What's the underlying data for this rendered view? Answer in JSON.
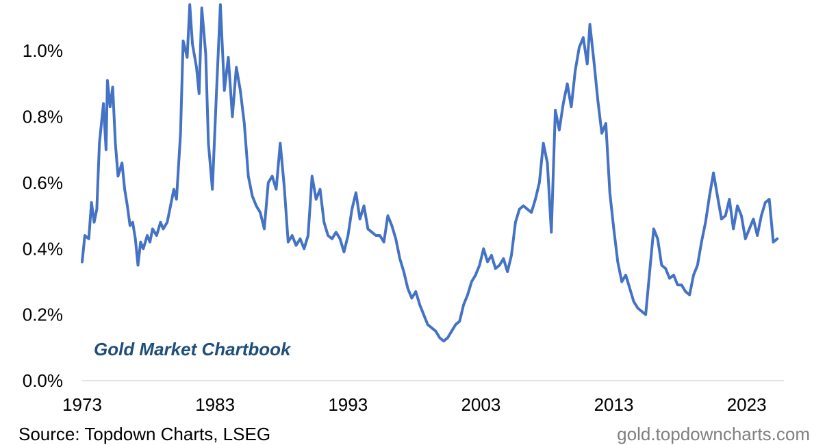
{
  "chart_data": {
    "type": "line",
    "title": "",
    "xlabel": "",
    "ylabel": "",
    "y_format": "percent_1dp",
    "ylim": [
      0.0,
      1.1
    ],
    "y_ticks": [
      0.0,
      0.2,
      0.4,
      0.6,
      0.8,
      1.0
    ],
    "y_tick_labels": [
      "0.0%",
      "0.2%",
      "0.4%",
      "0.6%",
      "0.8%",
      "1.0%"
    ],
    "xlim": [
      1973.0,
      2025.8
    ],
    "x_ticks": [
      1973,
      1983,
      1993,
      2003,
      2013,
      2023
    ],
    "x_tick_labels": [
      "1973",
      "1983",
      "1993",
      "2003",
      "2013",
      "2023"
    ],
    "grid": false,
    "legend": "none",
    "line_color": "#4472c4",
    "axis_color": "#d9d9d9",
    "series": [
      {
        "x": [
          1973.0,
          1973.2,
          1973.5,
          1973.7,
          1973.9,
          1974.1,
          1974.3,
          1974.6,
          1974.8,
          1974.9,
          1975.1,
          1975.3,
          1975.5,
          1975.7,
          1976.0,
          1976.2,
          1976.4,
          1976.6,
          1976.8,
          1977.0,
          1977.2,
          1977.4,
          1977.6,
          1977.9,
          1978.1,
          1978.3,
          1978.6,
          1978.9,
          1979.1,
          1979.4,
          1979.6,
          1979.9,
          1980.1,
          1980.4,
          1980.6,
          1980.9,
          1981.1,
          1981.3,
          1981.6,
          1981.8,
          1982.0,
          1982.3,
          1982.5,
          1982.8,
          1983.1,
          1983.4,
          1983.7,
          1984.0,
          1984.3,
          1984.6,
          1984.9,
          1985.2,
          1985.5,
          1985.8,
          1986.1,
          1986.4,
          1986.7,
          1987.0,
          1987.3,
          1987.6,
          1987.9,
          1988.2,
          1988.5,
          1988.8,
          1989.1,
          1989.4,
          1989.7,
          1990.0,
          1990.3,
          1990.6,
          1990.9,
          1991.2,
          1991.5,
          1991.8,
          1992.1,
          1992.4,
          1992.7,
          1993.0,
          1993.3,
          1993.6,
          1993.9,
          1994.2,
          1994.5,
          1994.8,
          1995.1,
          1995.4,
          1995.7,
          1996.0,
          1996.3,
          1996.6,
          1996.9,
          1997.2,
          1997.5,
          1997.8,
          1998.1,
          1998.4,
          1998.7,
          1999.0,
          1999.3,
          1999.6,
          1999.9,
          2000.2,
          2000.5,
          2000.8,
          2001.1,
          2001.4,
          2001.7,
          2002.0,
          2002.3,
          2002.6,
          2002.9,
          2003.2,
          2003.5,
          2003.8,
          2004.1,
          2004.4,
          2004.7,
          2005.0,
          2005.3,
          2005.6,
          2005.9,
          2006.2,
          2006.5,
          2006.8,
          2007.1,
          2007.4,
          2007.7,
          2008.0,
          2008.3,
          2008.6,
          2008.9,
          2009.2,
          2009.5,
          2009.8,
          2010.1,
          2010.4,
          2010.7,
          2011.0,
          2011.2,
          2011.5,
          2011.8,
          2012.1,
          2012.4,
          2012.7,
          2013.0,
          2013.3,
          2013.6,
          2013.9,
          2014.2,
          2014.5,
          2014.8,
          2015.1,
          2015.4,
          2015.7,
          2016.0,
          2016.3,
          2016.6,
          2016.9,
          2017.2,
          2017.5,
          2017.8,
          2018.1,
          2018.4,
          2018.7,
          2019.0,
          2019.3,
          2019.6,
          2019.9,
          2020.2,
          2020.5,
          2020.8,
          2021.1,
          2021.4,
          2021.7,
          2022.0,
          2022.3,
          2022.6,
          2022.9,
          2023.2,
          2023.5,
          2023.8,
          2024.1,
          2024.4,
          2024.7,
          2025.0,
          2025.3
        ],
        "values": [
          0.36,
          0.44,
          0.43,
          0.54,
          0.48,
          0.52,
          0.72,
          0.84,
          0.7,
          0.91,
          0.83,
          0.89,
          0.72,
          0.62,
          0.66,
          0.58,
          0.53,
          0.47,
          0.48,
          0.43,
          0.35,
          0.42,
          0.4,
          0.44,
          0.42,
          0.46,
          0.44,
          0.48,
          0.46,
          0.48,
          0.52,
          0.58,
          0.55,
          0.75,
          1.03,
          0.98,
          1.14,
          1.02,
          0.95,
          0.87,
          1.13,
          0.99,
          0.72,
          0.58,
          0.87,
          1.14,
          0.88,
          0.98,
          0.8,
          0.95,
          0.88,
          0.78,
          0.62,
          0.56,
          0.53,
          0.51,
          0.46,
          0.6,
          0.62,
          0.58,
          0.72,
          0.59,
          0.42,
          0.44,
          0.41,
          0.43,
          0.4,
          0.44,
          0.62,
          0.55,
          0.58,
          0.48,
          0.44,
          0.43,
          0.45,
          0.43,
          0.39,
          0.44,
          0.52,
          0.57,
          0.49,
          0.53,
          0.46,
          0.45,
          0.44,
          0.44,
          0.42,
          0.5,
          0.47,
          0.43,
          0.37,
          0.33,
          0.28,
          0.25,
          0.27,
          0.23,
          0.2,
          0.17,
          0.16,
          0.15,
          0.13,
          0.12,
          0.13,
          0.15,
          0.17,
          0.18,
          0.23,
          0.26,
          0.3,
          0.32,
          0.35,
          0.4,
          0.36,
          0.38,
          0.34,
          0.35,
          0.37,
          0.33,
          0.38,
          0.48,
          0.52,
          0.53,
          0.52,
          0.51,
          0.55,
          0.6,
          0.72,
          0.66,
          0.45,
          0.82,
          0.76,
          0.84,
          0.9,
          0.83,
          0.94,
          1.01,
          1.04,
          0.96,
          1.08,
          0.97,
          0.85,
          0.75,
          0.78,
          0.57,
          0.46,
          0.36,
          0.3,
          0.32,
          0.28,
          0.24,
          0.22,
          0.21,
          0.2,
          0.33,
          0.46,
          0.43,
          0.35,
          0.34,
          0.31,
          0.32,
          0.29,
          0.29,
          0.27,
          0.26,
          0.32,
          0.35,
          0.42,
          0.48,
          0.56,
          0.63,
          0.56,
          0.49,
          0.5,
          0.55,
          0.46,
          0.53,
          0.5,
          0.43,
          0.46,
          0.49,
          0.44,
          0.5,
          0.54,
          0.55,
          0.42,
          0.43
        ]
      }
    ]
  },
  "annotations": {
    "watermark_title": "Gold Market Chartbook",
    "source": "Source: Topdown Charts, LSEG",
    "site": "gold.topdowncharts.com"
  }
}
